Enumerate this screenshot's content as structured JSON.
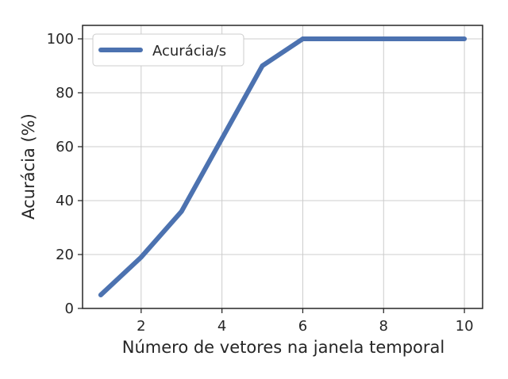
{
  "chart_data": {
    "type": "line",
    "xlabel": "Número de vetores na janela temporal",
    "ylabel": "Acurácia (%)",
    "xlim": [
      0.55,
      10.45
    ],
    "ylim": [
      0,
      105
    ],
    "xticks": [
      2,
      4,
      6,
      8,
      10
    ],
    "yticks": [
      0,
      20,
      40,
      60,
      80,
      100
    ],
    "xtick_labels": [
      "2",
      "4",
      "6",
      "8",
      "10"
    ],
    "ytick_labels": [
      "0",
      "20",
      "40",
      "60",
      "80",
      "100"
    ],
    "grid": true,
    "legend_position": "upper-left",
    "series": [
      {
        "name": "Acurácia/s",
        "color": "#4c72b0",
        "x": [
          1,
          2,
          3,
          4,
          5,
          6,
          7,
          8,
          9,
          10
        ],
        "y": [
          5,
          19,
          36,
          63,
          90,
          100,
          100,
          100,
          100,
          100
        ]
      }
    ]
  }
}
